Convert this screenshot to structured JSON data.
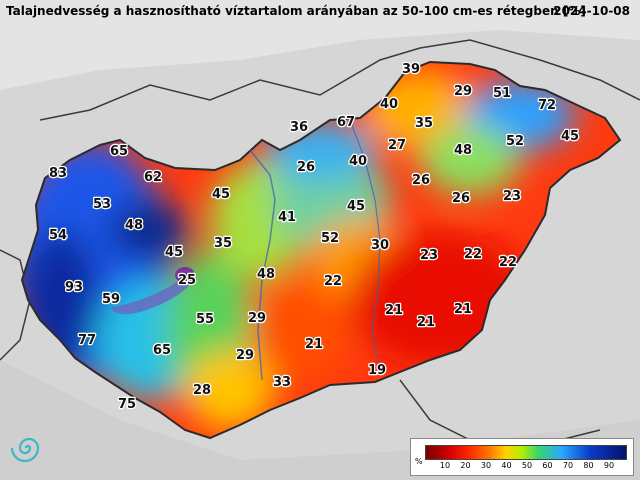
{
  "header": {
    "title": "Talajnedvesség a hasznosítható víztartalom arányában az 50-100 cm-es rétegben [%]",
    "date": "2024-10-08"
  },
  "labels": [
    "83",
    "65",
    "62",
    "53",
    "54",
    "48",
    "45",
    "93",
    "59",
    "77",
    "75",
    "65",
    "55",
    "45",
    "35",
    "25",
    "48",
    "29",
    "29",
    "28",
    "33",
    "36",
    "67",
    "40",
    "39",
    "29",
    "51",
    "72",
    "35",
    "27",
    "48",
    "52",
    "45",
    "26",
    "40",
    "26",
    "41",
    "45",
    "52",
    "30",
    "26",
    "23",
    "22",
    "23",
    "22",
    "22",
    "21",
    "21",
    "21",
    "21",
    "19"
  ],
  "legend": {
    "unit": "%",
    "ticks": [
      "10",
      "20",
      "30",
      "40",
      "50",
      "60",
      "70",
      "80",
      "90"
    ],
    "colors": [
      "#7a0000",
      "#d40000",
      "#ff2a00",
      "#ff7a00",
      "#ffd200",
      "#b0f000",
      "#3cd46a",
      "#2aa7ff",
      "#0a3cc8",
      "#06126a"
    ]
  },
  "logo": {
    "icon": "spiral-logo"
  }
}
